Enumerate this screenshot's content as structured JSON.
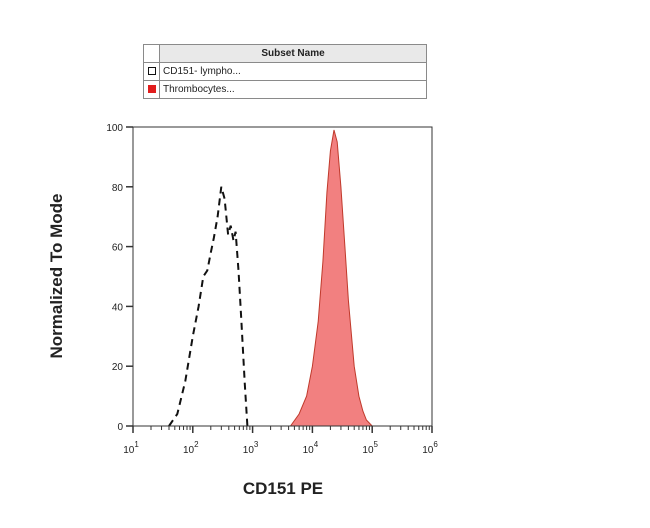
{
  "legend": {
    "header": "Subset Name",
    "entries": [
      {
        "label": "CD151- lympho...",
        "style": "dashed-outline",
        "color": "#111111"
      },
      {
        "label": "Thrombocytes...",
        "style": "filled",
        "color": "#e11d1d"
      }
    ]
  },
  "chart_data": {
    "type": "area",
    "xlabel": "CD151 PE",
    "ylabel": "Normalized To Mode",
    "x_scale": "log10",
    "xlim": [
      10,
      1000000
    ],
    "ylim": [
      0,
      100
    ],
    "x_ticks": [
      {
        "value": 10,
        "base": "10",
        "exp": "1"
      },
      {
        "value": 100,
        "base": "10",
        "exp": "2"
      },
      {
        "value": 1000,
        "base": "10",
        "exp": "3"
      },
      {
        "value": 10000,
        "base": "10",
        "exp": "4"
      },
      {
        "value": 100000,
        "base": "10",
        "exp": "5"
      },
      {
        "value": 1000000,
        "base": "10",
        "exp": "6"
      }
    ],
    "y_ticks": [
      0,
      20,
      40,
      60,
      80,
      100
    ],
    "series": [
      {
        "name": "CD151- lympho...",
        "style": "dashed",
        "color": "#111111",
        "x": [
          40,
          55,
          75,
          100,
          125,
          150,
          175,
          200,
          225,
          260,
          300,
          340,
          390,
          430,
          480,
          520,
          580,
          650,
          740,
          820
        ],
        "y": [
          0,
          4,
          15,
          30,
          40,
          50,
          52,
          58,
          63,
          70,
          80,
          76,
          64,
          67,
          62,
          65,
          52,
          35,
          14,
          0
        ]
      },
      {
        "name": "Thrombocytes...",
        "style": "filled",
        "color": "#f28080",
        "x": [
          4300,
          6000,
          8000,
          10000,
          12500,
          15000,
          17500,
          20000,
          23000,
          26000,
          30000,
          35000,
          40000,
          50000,
          60000,
          70000,
          80000,
          100000
        ],
        "y": [
          0,
          4,
          10,
          20,
          35,
          55,
          78,
          92,
          99,
          95,
          80,
          60,
          42,
          20,
          10,
          5,
          2,
          0
        ]
      }
    ]
  }
}
